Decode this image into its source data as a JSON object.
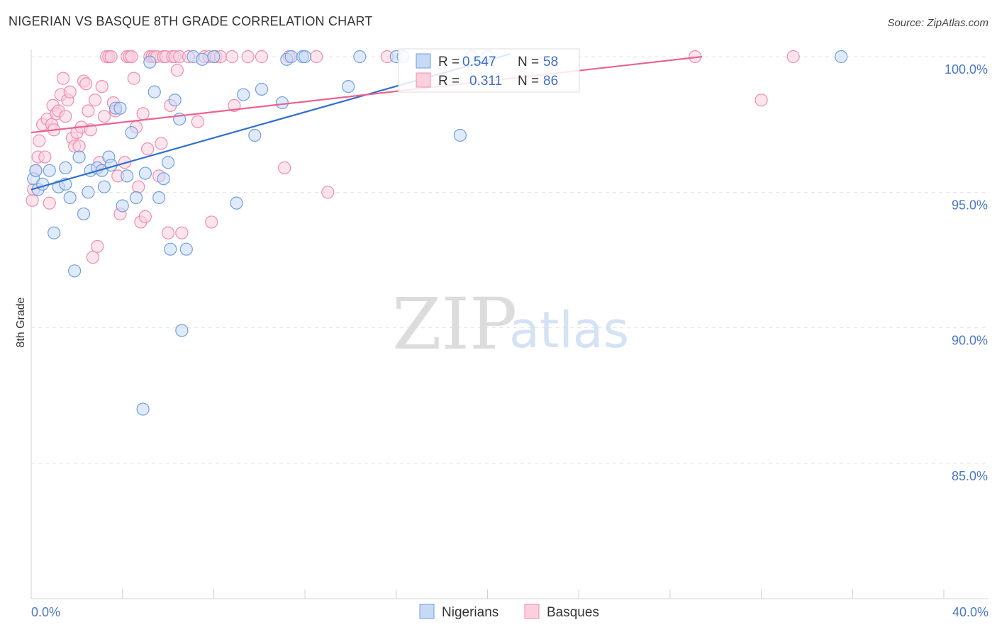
{
  "title": "NIGERIAN VS BASQUE 8TH GRADE CORRELATION CHART",
  "source": "Source: ZipAtlas.com",
  "watermark": {
    "zip": "ZIP",
    "atlas": "atlas"
  },
  "colors": {
    "nigerians": "#6fa0e0",
    "nigerians_line": "#2f6fcc",
    "basques": "#f08cac",
    "basques_line": "#e8648f",
    "axis_text": "#4a78c8"
  },
  "chart_data": {
    "type": "scatter",
    "title": "NIGERIAN VS BASQUE 8TH GRADE CORRELATION CHART",
    "xlabel": "",
    "ylabel": "8th Grade",
    "xlim": [
      0,
      40
    ],
    "ylim": [
      80.5,
      100.8
    ],
    "x_tick_labels": [
      "0.0%",
      "40.0%"
    ],
    "y_ticks": [
      100,
      95,
      90,
      85
    ],
    "y_tick_labels": [
      "100.0%",
      "95.0%",
      "90.0%",
      "85.0%"
    ],
    "legend": [
      {
        "name": "Nigerians",
        "r_label": "R =",
        "r": "0.547",
        "n_label": "N =",
        "n": "58"
      },
      {
        "name": "Basques",
        "r_label": "R =",
        "r": "0.311",
        "n_label": "N =",
        "n": "86"
      }
    ],
    "series": [
      {
        "name": "Nigerians",
        "trend": {
          "x": [
            0,
            21
          ],
          "y": [
            95.1,
            100.1
          ]
        },
        "points": [
          [
            0.1,
            95.5
          ],
          [
            0.2,
            95.8
          ],
          [
            0.3,
            95.1
          ],
          [
            0.5,
            95.3
          ],
          [
            0.8,
            95.8
          ],
          [
            1.0,
            93.5
          ],
          [
            1.2,
            95.2
          ],
          [
            1.5,
            95.3
          ],
          [
            1.5,
            95.9
          ],
          [
            1.7,
            94.8
          ],
          [
            1.9,
            92.1
          ],
          [
            2.1,
            96.3
          ],
          [
            2.3,
            94.2
          ],
          [
            2.5,
            95.0
          ],
          [
            2.6,
            95.8
          ],
          [
            2.9,
            95.9
          ],
          [
            3.1,
            95.8
          ],
          [
            3.2,
            95.2
          ],
          [
            3.4,
            96.3
          ],
          [
            3.5,
            96.0
          ],
          [
            3.7,
            98.1
          ],
          [
            3.9,
            98.1
          ],
          [
            4.0,
            94.5
          ],
          [
            4.2,
            95.6
          ],
          [
            4.4,
            97.2
          ],
          [
            4.6,
            94.8
          ],
          [
            4.9,
            87.0
          ],
          [
            5.0,
            95.7
          ],
          [
            5.2,
            99.8
          ],
          [
            5.4,
            98.7
          ],
          [
            5.6,
            94.8
          ],
          [
            5.8,
            95.5
          ],
          [
            6.0,
            96.1
          ],
          [
            6.1,
            92.9
          ],
          [
            6.3,
            98.4
          ],
          [
            6.5,
            97.7
          ],
          [
            6.6,
            89.9
          ],
          [
            6.8,
            92.9
          ],
          [
            7.1,
            100.0
          ],
          [
            7.5,
            99.9
          ],
          [
            8.0,
            100.0
          ],
          [
            9.0,
            94.6
          ],
          [
            9.3,
            98.6
          ],
          [
            9.8,
            97.1
          ],
          [
            10.1,
            98.8
          ],
          [
            11.0,
            98.3
          ],
          [
            11.2,
            99.9
          ],
          [
            11.4,
            100.0
          ],
          [
            11.9,
            100.0
          ],
          [
            12.0,
            100.0
          ],
          [
            13.9,
            98.9
          ],
          [
            14.4,
            100.0
          ],
          [
            16.0,
            100.0
          ],
          [
            16.3,
            100.0
          ],
          [
            18.8,
            97.1
          ],
          [
            19.3,
            100.0
          ],
          [
            20.0,
            100.0
          ],
          [
            35.5,
            100.0
          ]
        ]
      },
      {
        "name": "Basques",
        "trend": {
          "x": [
            0,
            29.4
          ],
          "y": [
            97.2,
            100.0
          ]
        },
        "points": [
          [
            0.05,
            94.7
          ],
          [
            0.1,
            95.1
          ],
          [
            0.2,
            95.8
          ],
          [
            0.3,
            96.3
          ],
          [
            0.35,
            96.9
          ],
          [
            0.5,
            97.5
          ],
          [
            0.6,
            96.3
          ],
          [
            0.7,
            97.7
          ],
          [
            0.8,
            94.6
          ],
          [
            0.9,
            97.5
          ],
          [
            0.95,
            98.2
          ],
          [
            1.0,
            97.3
          ],
          [
            1.1,
            97.9
          ],
          [
            1.2,
            98.0
          ],
          [
            1.3,
            98.6
          ],
          [
            1.4,
            99.2
          ],
          [
            1.5,
            97.8
          ],
          [
            1.6,
            98.4
          ],
          [
            1.7,
            98.7
          ],
          [
            1.8,
            97.0
          ],
          [
            1.9,
            96.7
          ],
          [
            2.0,
            97.2
          ],
          [
            2.1,
            96.7
          ],
          [
            2.2,
            97.4
          ],
          [
            2.3,
            99.1
          ],
          [
            2.4,
            99.0
          ],
          [
            2.5,
            98.0
          ],
          [
            2.6,
            97.3
          ],
          [
            2.7,
            92.6
          ],
          [
            2.8,
            98.4
          ],
          [
            2.9,
            93.0
          ],
          [
            3.0,
            96.1
          ],
          [
            3.1,
            98.9
          ],
          [
            3.2,
            97.8
          ],
          [
            3.3,
            100.0
          ],
          [
            3.4,
            100.0
          ],
          [
            3.5,
            100.0
          ],
          [
            3.6,
            98.3
          ],
          [
            3.7,
            98.0
          ],
          [
            3.8,
            95.6
          ],
          [
            3.9,
            94.2
          ],
          [
            4.1,
            96.1
          ],
          [
            4.2,
            100.0
          ],
          [
            4.3,
            100.0
          ],
          [
            4.4,
            100.0
          ],
          [
            4.5,
            99.2
          ],
          [
            4.6,
            97.4
          ],
          [
            4.7,
            95.2
          ],
          [
            4.8,
            93.9
          ],
          [
            4.9,
            97.9
          ],
          [
            5.0,
            94.1
          ],
          [
            5.1,
            96.6
          ],
          [
            5.2,
            100.0
          ],
          [
            5.3,
            100.0
          ],
          [
            5.4,
            100.0
          ],
          [
            5.5,
            100.0
          ],
          [
            5.6,
            95.6
          ],
          [
            5.7,
            96.8
          ],
          [
            5.8,
            100.0
          ],
          [
            5.9,
            100.0
          ],
          [
            6.0,
            93.5
          ],
          [
            6.1,
            98.2
          ],
          [
            6.2,
            100.0
          ],
          [
            6.3,
            100.0
          ],
          [
            6.4,
            99.5
          ],
          [
            6.5,
            100.0
          ],
          [
            6.6,
            93.5
          ],
          [
            6.9,
            100.0
          ],
          [
            7.3,
            97.6
          ],
          [
            7.6,
            100.0
          ],
          [
            7.8,
            100.0
          ],
          [
            8.1,
            100.0
          ],
          [
            7.9,
            93.9
          ],
          [
            8.3,
            100.0
          ],
          [
            8.8,
            100.0
          ],
          [
            8.9,
            98.2
          ],
          [
            9.5,
            100.0
          ],
          [
            10.1,
            100.0
          ],
          [
            11.1,
            95.9
          ],
          [
            11.3,
            100.0
          ],
          [
            12.5,
            100.0
          ],
          [
            13.0,
            95.0
          ],
          [
            15.6,
            100.0
          ],
          [
            29.1,
            100.0
          ],
          [
            32.0,
            98.4
          ],
          [
            33.4,
            100.0
          ]
        ]
      }
    ]
  }
}
